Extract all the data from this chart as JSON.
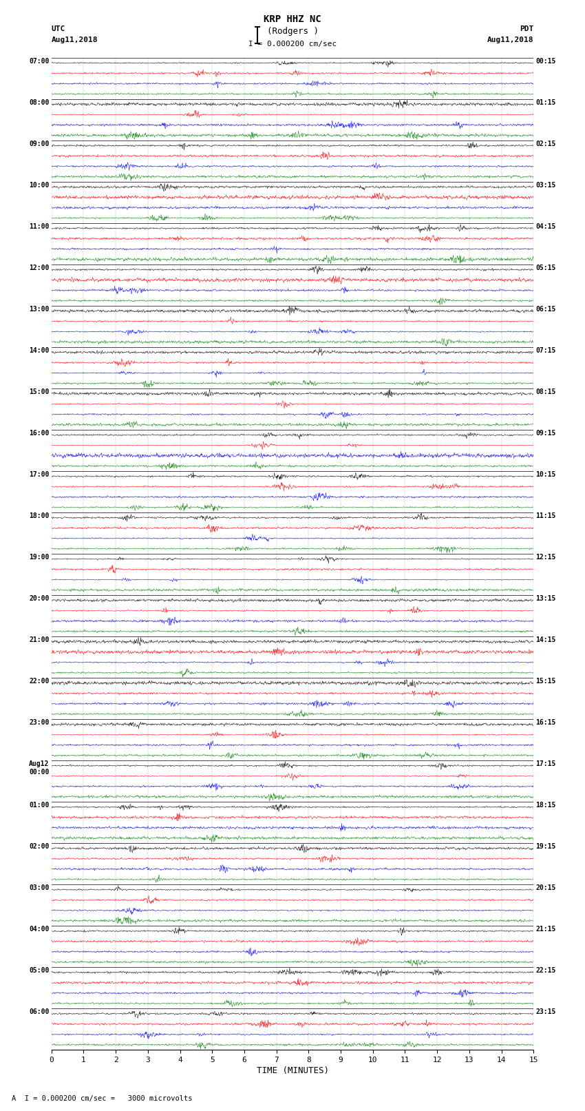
{
  "title_line1": "KRP HHZ NC",
  "title_line2": "(Rodgers )",
  "scale_label": "I = 0.000200 cm/sec",
  "left_header1": "UTC",
  "left_header2": "Aug11,2018",
  "right_header1": "PDT",
  "right_header2": "Aug11,2018",
  "bottom_label": "TIME (MINUTES)",
  "footnote": "A  I = 0.000200 cm/sec =   3000 microvolts",
  "xlabel_ticks": [
    0,
    1,
    2,
    3,
    4,
    5,
    6,
    7,
    8,
    9,
    10,
    11,
    12,
    13,
    14,
    15
  ],
  "utc_times": [
    "07:00",
    "08:00",
    "09:00",
    "10:00",
    "11:00",
    "12:00",
    "13:00",
    "14:00",
    "15:00",
    "16:00",
    "17:00",
    "18:00",
    "19:00",
    "20:00",
    "21:00",
    "22:00",
    "23:00",
    "Aug12\n00:00",
    "01:00",
    "02:00",
    "03:00",
    "04:00",
    "05:00",
    "06:00"
  ],
  "pdt_times": [
    "00:15",
    "01:15",
    "02:15",
    "03:15",
    "04:15",
    "05:15",
    "06:15",
    "07:15",
    "08:15",
    "09:15",
    "10:15",
    "11:15",
    "12:15",
    "13:15",
    "14:15",
    "15:15",
    "16:15",
    "17:15",
    "18:15",
    "19:15",
    "20:15",
    "21:15",
    "22:15",
    "23:15"
  ],
  "num_rows": 24,
  "traces_per_row": 4,
  "colors": [
    "black",
    "red",
    "blue",
    "green"
  ],
  "bg_color": "white",
  "fig_width": 8.5,
  "fig_height": 16.13,
  "dpi": 100,
  "noise_seed": 42
}
